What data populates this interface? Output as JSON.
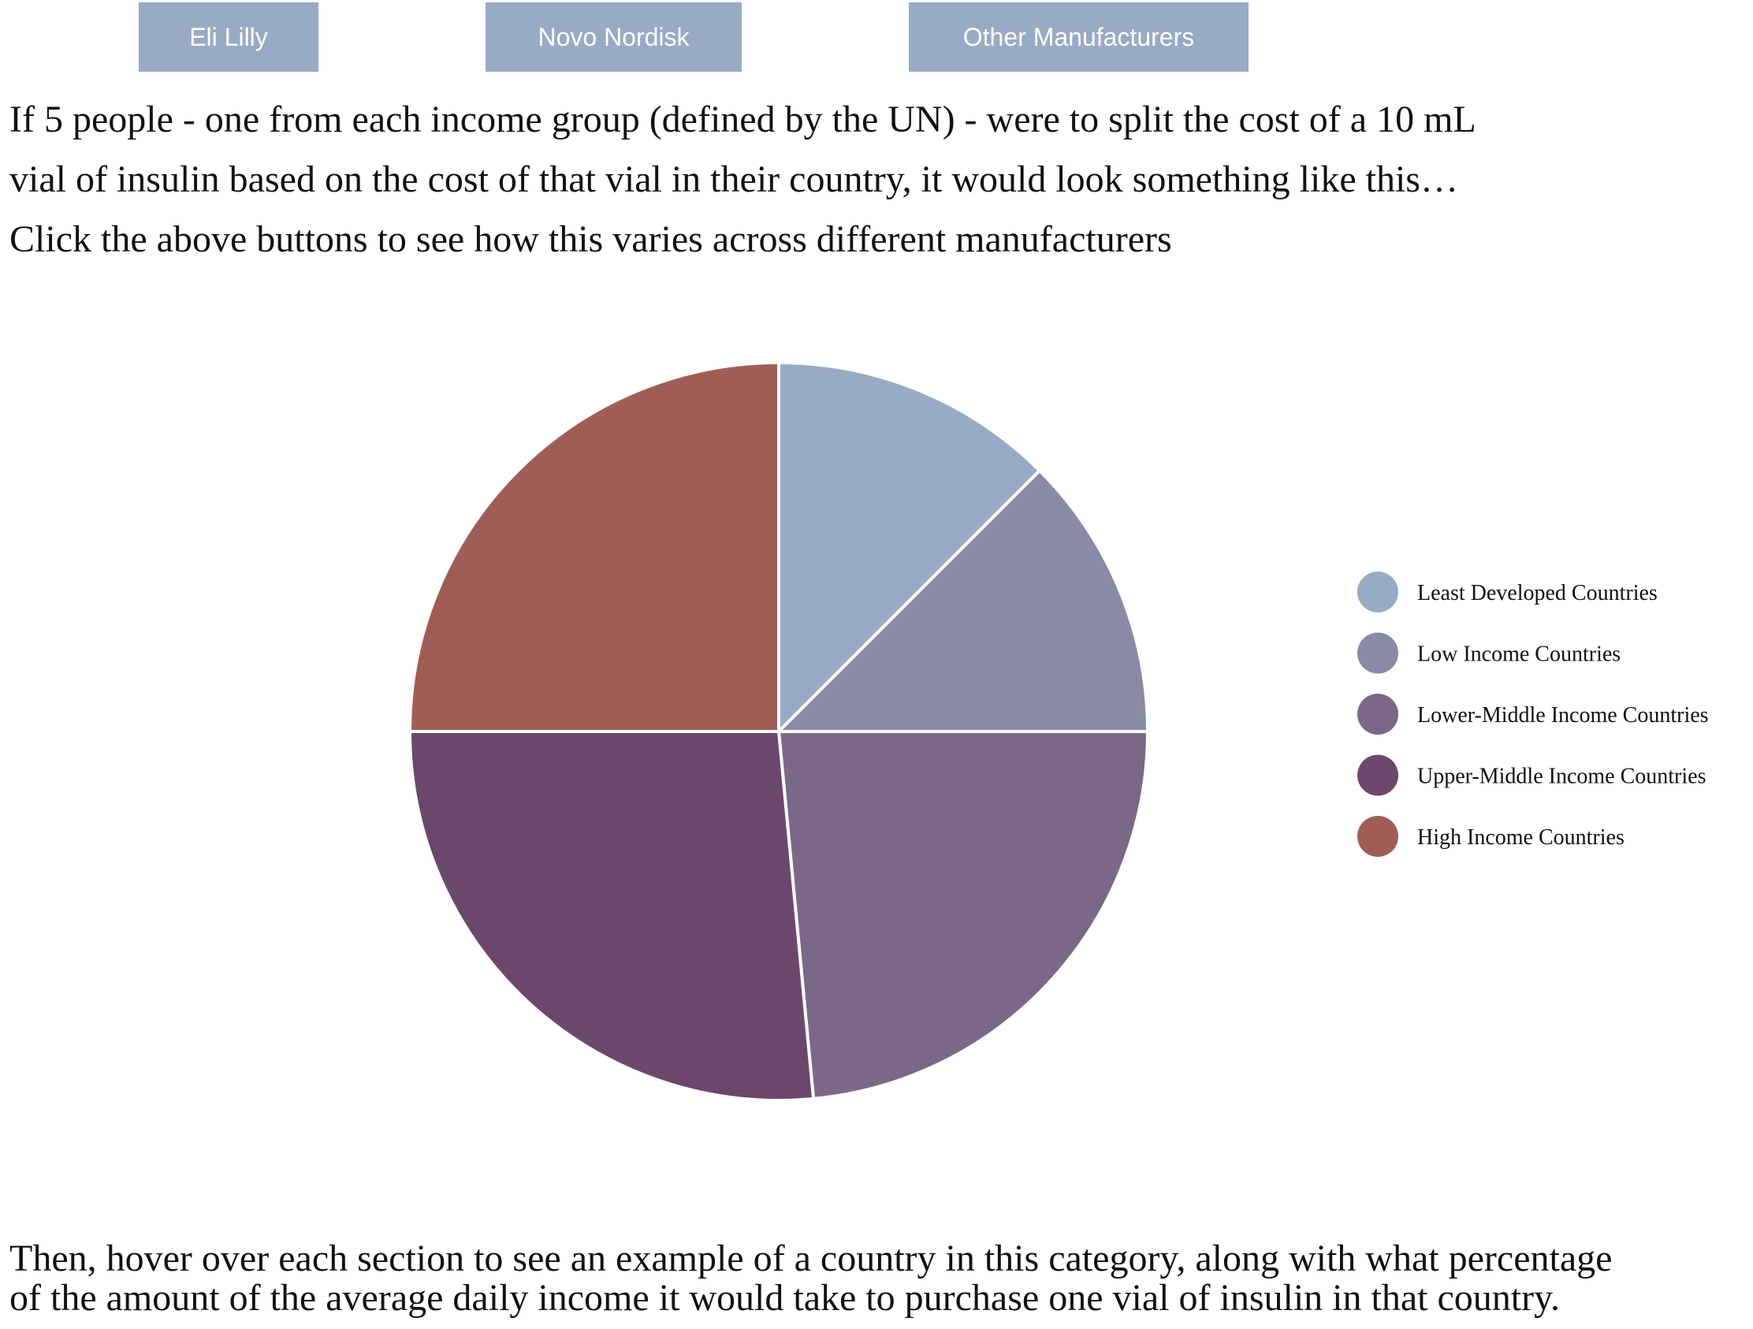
{
  "buttons": [
    {
      "label": "Eli Lilly"
    },
    {
      "label": "Novo Nordisk"
    },
    {
      "label": "Other Manufacturers"
    }
  ],
  "intro": {
    "line1": "If 5 people - one from each income group (defined by the UN) - were to split the cost of a 10 mL",
    "line2": "vial of insulin based on the cost of that vial in their country, it would look something like this…",
    "line3": "Click the above buttons to see how this varies across different manufacturers"
  },
  "outro": {
    "line1": "Then, hover over each section to see an example of a country in this category, along with what percentage",
    "line2": "of the amount of the average daily income it would take to purchase one vial of insulin in that country."
  },
  "chart_data": {
    "type": "pie",
    "categories": [
      "Least Developed Countries",
      "Low Income Countries",
      "Lower-Middle Income Countries",
      "Upper-Middle Income Countries",
      "High Income Countries"
    ],
    "values": [
      12.5,
      12.5,
      23.5,
      26.5,
      25.0
    ],
    "colors": [
      "#98abc5",
      "#8a89a6",
      "#7b6888",
      "#6b486b",
      "#a05d56"
    ],
    "legend_position": "right",
    "start": "top, clockwise"
  }
}
